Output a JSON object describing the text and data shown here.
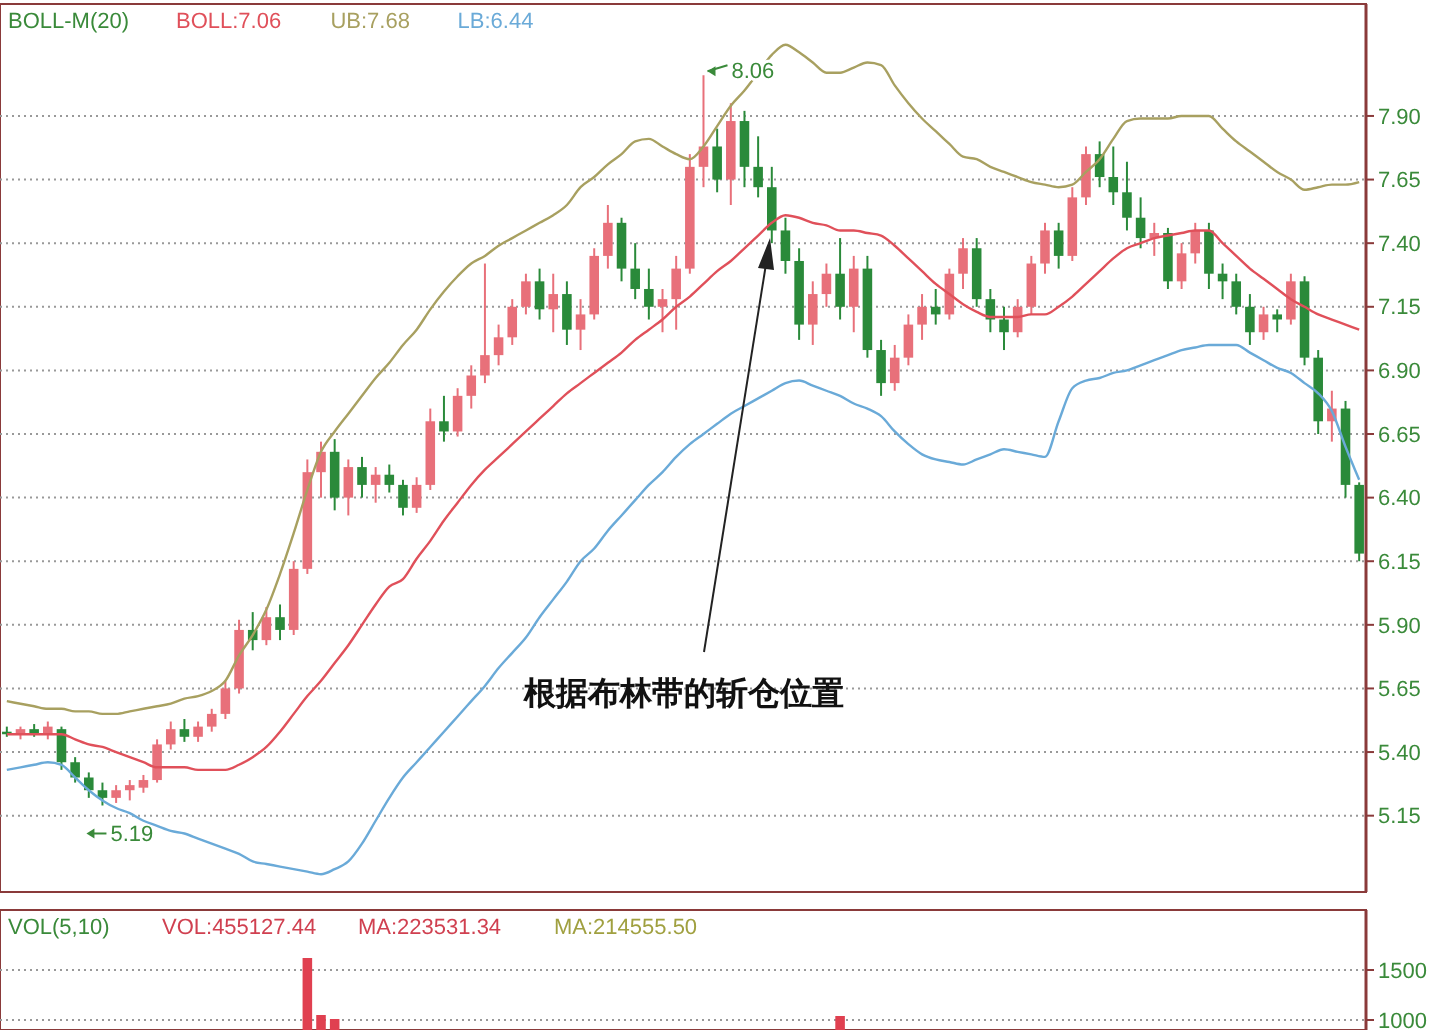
{
  "chart_data": [
    {
      "type": "candlestick",
      "title": "BOLL-M(20)",
      "legend": "top left",
      "grid": "y",
      "tick_labels": "y",
      "categories": [
        null,
        null,
        null,
        null,
        null,
        null,
        null,
        null,
        null,
        null,
        null,
        null,
        null,
        null,
        null,
        null,
        null,
        null,
        null,
        null,
        null,
        null,
        null,
        null,
        null,
        null,
        null,
        null,
        null,
        null,
        null,
        null,
        null,
        null,
        null,
        null,
        null,
        null,
        null,
        null,
        null,
        null,
        null,
        null,
        null,
        null,
        null,
        null,
        null,
        null,
        null,
        null,
        null,
        null,
        null,
        null,
        null,
        null,
        null,
        null,
        null,
        null,
        null,
        null,
        null,
        null,
        null,
        null,
        null,
        null,
        null,
        null,
        null,
        null,
        null,
        null,
        null,
        null,
        null,
        null,
        null,
        null,
        null,
        null,
        null,
        null,
        null,
        null,
        null,
        null,
        null,
        null,
        null,
        null,
        null,
        null,
        null,
        null,
        null,
        null
      ],
      "ylim": [
        4.85,
        8.34
      ],
      "yticks": [
        5.15,
        {
          "value": 5.4,
          "label": "5.40"
        },
        5.65,
        {
          "value": 5.9,
          "label": "5.90"
        },
        6.15,
        {
          "value": 6.4,
          "label": "6.40"
        },
        6.65,
        {
          "value": 6.9,
          "label": "6.90"
        },
        7.15,
        {
          "value": 7.4,
          "label": "7.40"
        },
        7.65,
        {
          "value": 7.9,
          "label": "7.90"
        }
      ],
      "series": [
        {
          "ohlc": [
            [
              5.48,
              5.5,
              5.46,
              5.47
            ],
            [
              5.47,
              5.5,
              5.45,
              5.49
            ],
            [
              5.49,
              5.51,
              5.46,
              5.47
            ],
            [
              5.47,
              5.52,
              5.45,
              5.5
            ],
            [
              5.49,
              5.5,
              5.33,
              5.36
            ],
            [
              5.36,
              5.38,
              5.28,
              5.3
            ],
            [
              5.3,
              5.32,
              5.22,
              5.25
            ],
            [
              5.25,
              5.28,
              5.19,
              5.22
            ],
            [
              5.22,
              5.27,
              5.2,
              5.25
            ],
            [
              5.25,
              5.29,
              5.21,
              5.27
            ],
            [
              5.26,
              5.31,
              5.24,
              5.29
            ],
            [
              5.29,
              5.45,
              5.28,
              5.43
            ],
            [
              5.43,
              5.52,
              5.41,
              5.49
            ],
            [
              5.49,
              5.53,
              5.44,
              5.46
            ],
            [
              5.46,
              5.52,
              5.44,
              5.5
            ],
            [
              5.5,
              5.57,
              5.48,
              5.55
            ],
            [
              5.55,
              5.68,
              5.53,
              5.65
            ],
            [
              5.65,
              5.92,
              5.63,
              5.88
            ],
            [
              5.88,
              5.95,
              5.8,
              5.84
            ],
            [
              5.84,
              5.97,
              5.82,
              5.93
            ],
            [
              5.93,
              5.98,
              5.84,
              5.88
            ],
            [
              5.88,
              6.15,
              5.86,
              6.12
            ],
            [
              6.12,
              6.55,
              6.1,
              6.5
            ],
            [
              6.5,
              6.62,
              6.4,
              6.58
            ],
            [
              6.58,
              6.63,
              6.35,
              6.4
            ],
            [
              6.4,
              6.55,
              6.33,
              6.52
            ],
            [
              6.52,
              6.56,
              6.4,
              6.45
            ],
            [
              6.45,
              6.52,
              6.38,
              6.49
            ],
            [
              6.49,
              6.53,
              6.42,
              6.45
            ],
            [
              6.45,
              6.47,
              6.33,
              6.36
            ],
            [
              6.36,
              6.48,
              6.34,
              6.45
            ],
            [
              6.45,
              6.75,
              6.43,
              6.7
            ],
            [
              6.7,
              6.8,
              6.62,
              6.66
            ],
            [
              6.66,
              6.83,
              6.64,
              6.8
            ],
            [
              6.8,
              6.92,
              6.75,
              6.88
            ],
            [
              6.88,
              7.32,
              6.85,
              6.96
            ],
            [
              6.96,
              7.08,
              6.92,
              7.03
            ],
            [
              7.03,
              7.18,
              7.0,
              7.15
            ],
            [
              7.15,
              7.28,
              7.12,
              7.25
            ],
            [
              7.25,
              7.3,
              7.1,
              7.14
            ],
            [
              7.14,
              7.28,
              7.05,
              7.2
            ],
            [
              7.2,
              7.25,
              7.0,
              7.06
            ],
            [
              7.06,
              7.18,
              6.98,
              7.12
            ],
            [
              7.12,
              7.38,
              7.1,
              7.35
            ],
            [
              7.35,
              7.55,
              7.3,
              7.48
            ],
            [
              7.48,
              7.5,
              7.25,
              7.3
            ],
            [
              7.3,
              7.4,
              7.18,
              7.22
            ],
            [
              7.22,
              7.3,
              7.1,
              7.15
            ],
            [
              7.15,
              7.22,
              7.05,
              7.18
            ],
            [
              7.18,
              7.35,
              7.06,
              7.3
            ],
            [
              7.3,
              7.75,
              7.28,
              7.7
            ],
            [
              7.7,
              8.06,
              7.62,
              7.78
            ],
            [
              7.78,
              7.85,
              7.6,
              7.65
            ],
            [
              7.65,
              7.95,
              7.55,
              7.88
            ],
            [
              7.88,
              7.92,
              7.62,
              7.7
            ],
            [
              7.7,
              7.82,
              7.58,
              7.62
            ],
            [
              7.62,
              7.7,
              7.4,
              7.45
            ],
            [
              7.45,
              7.5,
              7.28,
              7.33
            ],
            [
              7.33,
              7.38,
              7.02,
              7.08
            ],
            [
              7.08,
              7.25,
              7.0,
              7.2
            ],
            [
              7.2,
              7.32,
              7.15,
              7.28
            ],
            [
              7.28,
              7.42,
              7.1,
              7.15
            ],
            [
              7.15,
              7.35,
              7.05,
              7.3
            ],
            [
              7.3,
              7.35,
              6.95,
              6.98
            ],
            [
              6.98,
              7.02,
              6.8,
              6.85
            ],
            [
              6.85,
              7.0,
              6.82,
              6.95
            ],
            [
              6.95,
              7.12,
              6.92,
              7.08
            ],
            [
              7.08,
              7.2,
              7.02,
              7.15
            ],
            [
              7.15,
              7.22,
              7.08,
              7.12
            ],
            [
              7.12,
              7.3,
              7.1,
              7.28
            ],
            [
              7.28,
              7.42,
              7.22,
              7.38
            ],
            [
              7.38,
              7.42,
              7.15,
              7.18
            ],
            [
              7.18,
              7.22,
              7.05,
              7.1
            ],
            [
              7.1,
              7.15,
              6.98,
              7.05
            ],
            [
              7.05,
              7.18,
              7.03,
              7.15
            ],
            [
              7.15,
              7.35,
              7.12,
              7.32
            ],
            [
              7.32,
              7.48,
              7.28,
              7.45
            ],
            [
              7.45,
              7.48,
              7.3,
              7.35
            ],
            [
              7.35,
              7.62,
              7.33,
              7.58
            ],
            [
              7.58,
              7.78,
              7.55,
              7.75
            ],
            [
              7.75,
              7.8,
              7.62,
              7.66
            ],
            [
              7.66,
              7.78,
              7.55,
              7.6
            ],
            [
              7.6,
              7.72,
              7.45,
              7.5
            ],
            [
              7.5,
              7.58,
              7.38,
              7.42
            ],
            [
              7.42,
              7.48,
              7.35,
              7.44
            ],
            [
              7.44,
              7.46,
              7.22,
              7.25
            ],
            [
              7.25,
              7.4,
              7.22,
              7.36
            ],
            [
              7.36,
              7.48,
              7.32,
              7.45
            ],
            [
              7.45,
              7.48,
              7.22,
              7.28
            ],
            [
              7.28,
              7.32,
              7.18,
              7.25
            ],
            [
              7.25,
              7.28,
              7.12,
              7.15
            ],
            [
              7.15,
              7.2,
              7.0,
              7.05
            ],
            [
              7.05,
              7.15,
              7.02,
              7.12
            ],
            [
              7.12,
              7.14,
              7.05,
              7.1
            ],
            [
              7.1,
              7.28,
              7.08,
              7.25
            ],
            [
              7.25,
              7.27,
              6.92,
              6.95
            ],
            [
              6.95,
              6.98,
              6.65,
              6.7
            ],
            [
              6.7,
              6.82,
              6.62,
              6.75
            ],
            [
              6.75,
              6.78,
              6.4,
              6.45
            ],
            [
              6.45,
              6.46,
              6.15,
              6.18
            ]
          ]
        },
        {
          "type": "line",
          "name": "BOLL:7.06",
          "color": "#e0505a",
          "values": [
            5.47,
            5.47,
            5.47,
            5.47,
            5.47,
            5.45,
            5.43,
            5.42,
            5.4,
            5.38,
            5.36,
            5.34,
            5.34,
            5.34,
            5.33,
            5.33,
            5.33,
            5.35,
            5.38,
            5.42,
            5.48,
            5.55,
            5.62,
            5.68,
            5.75,
            5.82,
            5.9,
            5.98,
            6.05,
            6.08,
            6.16,
            6.23,
            6.31,
            6.38,
            6.45,
            6.51,
            6.56,
            6.61,
            6.66,
            6.71,
            6.76,
            6.81,
            6.85,
            6.89,
            6.93,
            6.97,
            7.02,
            7.06,
            7.1,
            7.15,
            7.19,
            7.24,
            7.29,
            7.33,
            7.38,
            7.43,
            7.48,
            7.51,
            7.5,
            7.48,
            7.47,
            7.45,
            7.45,
            7.44,
            7.43,
            7.39,
            7.34,
            7.29,
            7.24,
            7.2,
            7.16,
            7.13,
            7.11,
            7.11,
            7.11,
            7.12,
            7.12,
            7.15,
            7.19,
            7.24,
            7.29,
            7.34,
            7.38,
            7.4,
            7.42,
            7.43,
            7.44,
            7.45,
            7.45,
            7.4,
            7.35,
            7.3,
            7.26,
            7.22,
            7.18,
            7.15,
            7.12,
            7.1,
            7.08,
            7.06
          ]
        },
        {
          "type": "line",
          "name": "UB:7.68",
          "color": "#a8a060",
          "values": [
            5.6,
            5.59,
            5.58,
            5.57,
            5.57,
            5.56,
            5.56,
            5.55,
            5.55,
            5.56,
            5.57,
            5.58,
            5.59,
            5.61,
            5.62,
            5.64,
            5.68,
            5.78,
            5.86,
            5.96,
            6.1,
            6.26,
            6.43,
            6.58,
            6.66,
            6.73,
            6.8,
            6.87,
            6.93,
            7.0,
            7.06,
            7.14,
            7.21,
            7.27,
            7.32,
            7.35,
            7.39,
            7.42,
            7.45,
            7.48,
            7.51,
            7.55,
            7.62,
            7.66,
            7.71,
            7.75,
            7.8,
            7.81,
            7.78,
            7.75,
            7.73,
            7.78,
            7.86,
            7.94,
            8.0,
            8.07,
            8.14,
            8.18,
            8.15,
            8.11,
            8.07,
            8.07,
            8.09,
            8.11,
            8.1,
            8.02,
            7.95,
            7.89,
            7.84,
            7.79,
            7.74,
            7.73,
            7.7,
            7.68,
            7.66,
            7.64,
            7.63,
            7.62,
            7.63,
            7.68,
            7.73,
            7.81,
            7.88,
            7.89,
            7.89,
            7.89,
            7.9,
            7.9,
            7.9,
            7.85,
            7.8,
            7.76,
            7.72,
            7.68,
            7.65,
            7.61,
            7.62,
            7.63,
            7.63,
            7.64
          ]
        },
        {
          "type": "line",
          "name": "LB:6.44",
          "color": "#6aaad8",
          "values": [
            5.33,
            5.34,
            5.35,
            5.36,
            5.35,
            5.3,
            5.25,
            5.21,
            5.18,
            5.16,
            5.13,
            5.11,
            5.09,
            5.08,
            5.06,
            5.04,
            5.02,
            5.0,
            4.97,
            4.96,
            4.95,
            4.94,
            4.93,
            4.92,
            4.94,
            4.97,
            5.04,
            5.13,
            5.22,
            5.3,
            5.36,
            5.42,
            5.48,
            5.54,
            5.6,
            5.66,
            5.73,
            5.79,
            5.85,
            5.93,
            6.0,
            6.07,
            6.15,
            6.2,
            6.27,
            6.33,
            6.39,
            6.45,
            6.5,
            6.56,
            6.61,
            6.65,
            6.69,
            6.73,
            6.76,
            6.79,
            6.82,
            6.85,
            6.86,
            6.84,
            6.82,
            6.8,
            6.77,
            6.75,
            6.72,
            6.66,
            6.61,
            6.57,
            6.55,
            6.54,
            6.53,
            6.55,
            6.57,
            6.59,
            6.58,
            6.57,
            6.56,
            6.7,
            6.83,
            6.86,
            6.87,
            6.89,
            6.9,
            6.92,
            6.94,
            6.96,
            6.98,
            6.99,
            7.0,
            7.0,
            7.0,
            6.97,
            6.94,
            6.91,
            6.89,
            6.85,
            6.81,
            6.74,
            6.6,
            6.47
          ]
        }
      ],
      "annotations": [
        {
          "text": "8.06",
          "y": 8.06
        },
        "5.19",
        "根据布林带的斩仓位置"
      ]
    },
    {
      "type": "bar",
      "title": "VOL(5,10)",
      "tick_labels": "y",
      "grid": "y",
      "categories": [
        null,
        null,
        null,
        null,
        null,
        null,
        null,
        null,
        null,
        null,
        null,
        null,
        null,
        null,
        null,
        null,
        null,
        null,
        null,
        null,
        null,
        null,
        null,
        null,
        null,
        null,
        null,
        null,
        null,
        null,
        null,
        null,
        null,
        null,
        null,
        null,
        null,
        null,
        null,
        null,
        null,
        null,
        null,
        null,
        null,
        null,
        null,
        null,
        null,
        null,
        null,
        null,
        null,
        null,
        null,
        null,
        null,
        null,
        null,
        null,
        null,
        null,
        null,
        null,
        null,
        null,
        null,
        null,
        null,
        null,
        null,
        null,
        null,
        null,
        null,
        null,
        null,
        null,
        null,
        null,
        null,
        null,
        null,
        null,
        null,
        null,
        null,
        null,
        null,
        null,
        null,
        null,
        null,
        null,
        null,
        null,
        null,
        null,
        null,
        null
      ],
      "ylim": [
        900,
        2100
      ],
      "yticks": [
        1000,
        1500
      ],
      "series": [
        {
          "color": "#e04050",
          "values": [
            null,
            null,
            null,
            null,
            null,
            null,
            null,
            null,
            null,
            null,
            null,
            null,
            null,
            null,
            null,
            null,
            null,
            null,
            null,
            null,
            null,
            null,
            1620,
            1050,
            1010,
            null,
            null,
            null,
            null,
            null,
            null,
            null,
            null,
            null,
            null,
            null,
            null,
            null,
            null,
            null,
            null,
            null,
            null,
            null,
            null,
            null,
            null,
            null,
            null,
            null,
            null,
            null,
            null,
            null,
            null,
            null,
            null,
            null,
            null,
            null,
            null,
            1040,
            null,
            null,
            null,
            null,
            null,
            null,
            null,
            null,
            null,
            null,
            null,
            null,
            null,
            null,
            null,
            null,
            null,
            null,
            null,
            null,
            null,
            null,
            null,
            null,
            null,
            null,
            null,
            null,
            null,
            null,
            null,
            null,
            null,
            null,
            null,
            null,
            null,
            null
          ]
        }
      ],
      "annotations": [
        "VOL:455127.44",
        "MA:223531.34",
        "MA:214555.50"
      ]
    }
  ]
}
